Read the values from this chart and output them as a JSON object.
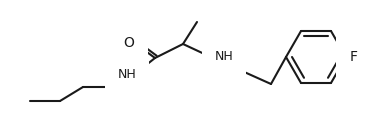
{
  "background_color": "#ffffff",
  "line_color": "#1a1a1a",
  "line_width": 1.5,
  "font_size": 9,
  "label_color": "#1a1a1a",
  "O_label": "O",
  "NH_label": "NH",
  "F_label": "F",
  "figsize": [
    3.9,
    1.26
  ],
  "dpi": 100
}
